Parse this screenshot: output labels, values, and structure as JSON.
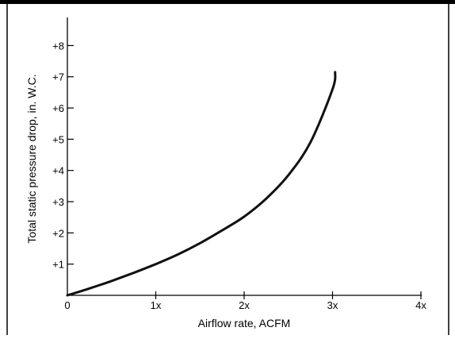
{
  "chart_data": {
    "type": "line",
    "title": "",
    "xlabel": "Airflow rate, ACFM",
    "ylabel": "Total static pressure drop, in. W.C.",
    "x_ticks": [
      {
        "value": 0,
        "label": "0"
      },
      {
        "value": 1,
        "label": "1x"
      },
      {
        "value": 2,
        "label": "2x"
      },
      {
        "value": 3,
        "label": "3x"
      },
      {
        "value": 4,
        "label": "4x"
      }
    ],
    "y_ticks": [
      {
        "value": 1,
        "label": "+1"
      },
      {
        "value": 2,
        "label": "+2"
      },
      {
        "value": 3,
        "label": "+3"
      },
      {
        "value": 4,
        "label": "+4"
      },
      {
        "value": 5,
        "label": "+5"
      },
      {
        "value": 6,
        "label": "+6"
      },
      {
        "value": 7,
        "label": "+7"
      },
      {
        "value": 8,
        "label": "+8"
      }
    ],
    "xlim": [
      0,
      4
    ],
    "ylim": [
      0,
      8.9
    ],
    "grid": false,
    "legend": "none",
    "series": [
      {
        "x": [
          0,
          0.25,
          0.5,
          0.75,
          1.0,
          1.25,
          1.5,
          1.75,
          2.0,
          2.25,
          2.5,
          2.75,
          3.0,
          3.03
        ],
        "y": [
          0.0,
          0.22,
          0.46,
          0.72,
          1.0,
          1.31,
          1.67,
          2.08,
          2.52,
          3.1,
          3.85,
          4.9,
          6.6,
          7.15
        ]
      }
    ],
    "colors": {
      "curve": "#111111",
      "axis": "#000000",
      "frame": "#000000",
      "ylabel_text": "#4a4632",
      "background": "#ffffff"
    }
  }
}
